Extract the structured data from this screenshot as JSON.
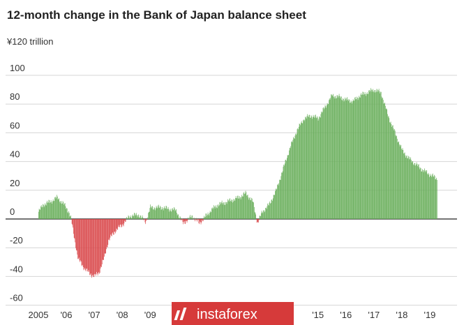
{
  "chart_data": {
    "type": "bar",
    "title": "12-month change in the Bank of Japan balance sheet",
    "unit_label": "¥120 trillion",
    "ylim": [
      -60,
      120
    ],
    "yticks": [
      -60,
      -40,
      -20,
      0,
      20,
      40,
      60,
      80,
      100
    ],
    "ytick_labels": [
      "-60",
      "-40",
      "-20",
      "0",
      "20",
      "40",
      "60",
      "80",
      "100"
    ],
    "grid": true,
    "xlim": [
      2005.0,
      2019.6
    ],
    "xticks": [
      {
        "x": 2005.0,
        "label": "2005"
      },
      {
        "x": 2006.0,
        "label": "'06"
      },
      {
        "x": 2007.0,
        "label": "'07"
      },
      {
        "x": 2008.0,
        "label": "'08"
      },
      {
        "x": 2009.0,
        "label": "'09"
      },
      {
        "x": 2014.0,
        "label": "4"
      },
      {
        "x": 2015.0,
        "label": "'15"
      },
      {
        "x": 2016.0,
        "label": "'16"
      },
      {
        "x": 2017.0,
        "label": "'17"
      },
      {
        "x": 2018.0,
        "label": "'18"
      },
      {
        "x": 2019.0,
        "label": "'19"
      }
    ],
    "colors": {
      "positive": "#6aaf5c",
      "negative": "#d9474a",
      "grid": "#d6d6d6",
      "zero_line": "#222222"
    },
    "anchors": [
      {
        "date": "2005-01",
        "value": 5
      },
      {
        "date": "2005-03",
        "value": 10
      },
      {
        "date": "2005-06",
        "value": 12
      },
      {
        "date": "2005-09",
        "value": 15
      },
      {
        "date": "2005-12",
        "value": 10
      },
      {
        "date": "2006-02",
        "value": 5
      },
      {
        "date": "2006-03",
        "value": 0
      },
      {
        "date": "2006-04",
        "value": -10
      },
      {
        "date": "2006-06",
        "value": -28
      },
      {
        "date": "2006-09",
        "value": -35
      },
      {
        "date": "2006-11",
        "value": -38
      },
      {
        "date": "2007-01",
        "value": -40
      },
      {
        "date": "2007-03",
        "value": -37
      },
      {
        "date": "2007-05",
        "value": -28
      },
      {
        "date": "2007-07",
        "value": -15
      },
      {
        "date": "2007-10",
        "value": -8
      },
      {
        "date": "2008-01",
        "value": -4
      },
      {
        "date": "2008-04",
        "value": 2
      },
      {
        "date": "2008-08",
        "value": 3
      },
      {
        "date": "2008-11",
        "value": -2
      },
      {
        "date": "2009-01",
        "value": 8
      },
      {
        "date": "2009-06",
        "value": 8
      },
      {
        "date": "2009-12",
        "value": 6
      },
      {
        "date": "2010-03",
        "value": -3
      },
      {
        "date": "2010-07",
        "value": 2
      },
      {
        "date": "2010-10",
        "value": -3
      },
      {
        "date": "2011-03",
        "value": 6
      },
      {
        "date": "2011-06",
        "value": 10
      },
      {
        "date": "2011-10",
        "value": 12
      },
      {
        "date": "2012-03",
        "value": 15
      },
      {
        "date": "2012-06",
        "value": 18
      },
      {
        "date": "2012-09",
        "value": 12
      },
      {
        "date": "2012-11",
        "value": -3
      },
      {
        "date": "2013-01",
        "value": 5
      },
      {
        "date": "2013-04",
        "value": 10
      },
      {
        "date": "2013-07",
        "value": 20
      },
      {
        "date": "2013-10",
        "value": 35
      },
      {
        "date": "2014-01",
        "value": 50
      },
      {
        "date": "2014-04",
        "value": 62
      },
      {
        "date": "2014-07",
        "value": 70
      },
      {
        "date": "2014-10",
        "value": 72
      },
      {
        "date": "2015-01",
        "value": 70
      },
      {
        "date": "2015-04",
        "value": 78
      },
      {
        "date": "2015-07",
        "value": 86
      },
      {
        "date": "2015-10",
        "value": 85
      },
      {
        "date": "2016-01",
        "value": 83
      },
      {
        "date": "2016-04",
        "value": 82
      },
      {
        "date": "2016-07",
        "value": 86
      },
      {
        "date": "2016-10",
        "value": 88
      },
      {
        "date": "2017-01",
        "value": 90
      },
      {
        "date": "2017-04",
        "value": 88
      },
      {
        "date": "2017-07",
        "value": 72
      },
      {
        "date": "2017-10",
        "value": 60
      },
      {
        "date": "2018-01",
        "value": 48
      },
      {
        "date": "2018-04",
        "value": 42
      },
      {
        "date": "2018-07",
        "value": 38
      },
      {
        "date": "2018-10",
        "value": 34
      },
      {
        "date": "2019-01",
        "value": 31
      },
      {
        "date": "2019-04",
        "value": 28
      }
    ]
  },
  "watermark": {
    "brand": "instaforex",
    "color": "#d63a3a"
  }
}
